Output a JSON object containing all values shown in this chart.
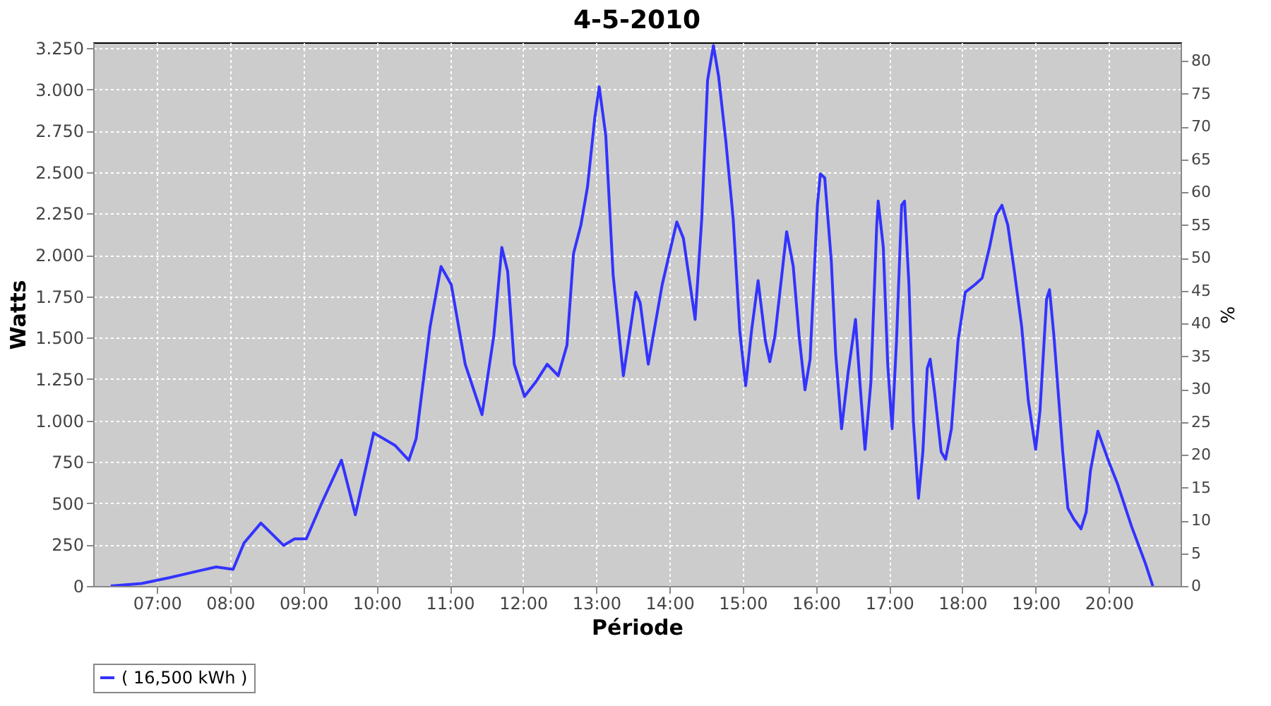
{
  "chart_data": {
    "type": "line",
    "title": "4-5-2010",
    "xlabel": "Période",
    "ylabel": "Watts",
    "y2label": "%",
    "xlim": [
      6.13,
      20.98
    ],
    "xticks": [
      {
        "value": 7,
        "label": "07:00"
      },
      {
        "value": 8,
        "label": "08:00"
      },
      {
        "value": 9,
        "label": "09:00"
      },
      {
        "value": 10,
        "label": "10:00"
      },
      {
        "value": 11,
        "label": "11:00"
      },
      {
        "value": 12,
        "label": "12:00"
      },
      {
        "value": 13,
        "label": "13:00"
      },
      {
        "value": 14,
        "label": "14:00"
      },
      {
        "value": 15,
        "label": "15:00"
      },
      {
        "value": 16,
        "label": "16:00"
      },
      {
        "value": 17,
        "label": "17:00"
      },
      {
        "value": 18,
        "label": "18:00"
      },
      {
        "value": 19,
        "label": "19:00"
      },
      {
        "value": 20,
        "label": "20:00"
      }
    ],
    "ylim": [
      0,
      3284
    ],
    "yticks": [
      0,
      250,
      500,
      750,
      {
        "value": 1000,
        "label": "1.000"
      },
      {
        "value": 1250,
        "label": "1.250"
      },
      {
        "value": 1500,
        "label": "1.500"
      },
      {
        "value": 1750,
        "label": "1.750"
      },
      {
        "value": 2000,
        "label": "2.000"
      },
      {
        "value": 2250,
        "label": "2.250"
      },
      {
        "value": 2500,
        "label": "2.500"
      },
      {
        "value": 2750,
        "label": "2.750"
      },
      {
        "value": 3000,
        "label": "3.000"
      },
      {
        "value": 3250,
        "label": "3.250"
      }
    ],
    "y2lim": [
      0,
      82.8
    ],
    "y2ticks": [
      0,
      5,
      10,
      15,
      20,
      25,
      30,
      35,
      40,
      45,
      50,
      55,
      60,
      65,
      70,
      75,
      80
    ],
    "grid": true,
    "legend": "bottom",
    "marker": "none",
    "line_style": "solid",
    "series": [
      {
        "name": "( 16,500 kWh )",
        "color": "#3333ff",
        "x": [
          6.37,
          6.79,
          7.17,
          7.56,
          7.81,
          8.04,
          8.19,
          8.42,
          8.73,
          8.88,
          9.04,
          9.25,
          9.52,
          9.71,
          9.96,
          10.25,
          10.44,
          10.54,
          10.73,
          10.88,
          11.02,
          11.21,
          11.44,
          11.6,
          11.71,
          11.79,
          11.88,
          12.02,
          12.17,
          12.33,
          12.48,
          12.6,
          12.69,
          12.79,
          12.88,
          12.98,
          13.04,
          13.13,
          13.23,
          13.37,
          13.54,
          13.6,
          13.71,
          13.9,
          14.1,
          14.19,
          14.35,
          14.44,
          14.52,
          14.6,
          14.67,
          14.77,
          14.87,
          14.96,
          15.04,
          15.12,
          15.21,
          15.31,
          15.37,
          15.44,
          15.6,
          15.69,
          15.77,
          15.85,
          15.92,
          16.02,
          16.06,
          16.12,
          16.21,
          16.27,
          16.35,
          16.44,
          16.54,
          16.6,
          16.67,
          16.75,
          16.83,
          16.85,
          16.92,
          16.98,
          17.04,
          17.1,
          17.17,
          17.21,
          17.27,
          17.33,
          17.4,
          17.46,
          17.52,
          17.56,
          17.62,
          17.71,
          17.77,
          17.85,
          17.94,
          18.04,
          18.17,
          18.27,
          18.37,
          18.46,
          18.54,
          18.62,
          18.71,
          18.81,
          18.9,
          19.0,
          19.06,
          19.15,
          19.19,
          19.25,
          19.37,
          19.44,
          19.52,
          19.62,
          19.69,
          19.75,
          19.85,
          20.0,
          20.12,
          20.31,
          20.5,
          20.6
        ],
        "values": [
          0,
          15,
          50,
          90,
          115,
          100,
          260,
          380,
          245,
          285,
          285,
          500,
          760,
          430,
          925,
          850,
          760,
          890,
          1565,
          1930,
          1820,
          1340,
          1035,
          1510,
          2045,
          1900,
          1340,
          1145,
          1230,
          1340,
          1270,
          1455,
          2010,
          2180,
          2410,
          2830,
          3015,
          2720,
          1880,
          1270,
          1775,
          1710,
          1340,
          1820,
          2200,
          2100,
          1610,
          2215,
          3055,
          3265,
          3080,
          2685,
          2215,
          1540,
          1210,
          1540,
          1845,
          1480,
          1355,
          1510,
          2140,
          1930,
          1510,
          1185,
          1370,
          2300,
          2490,
          2465,
          1960,
          1400,
          950,
          1290,
          1610,
          1230,
          825,
          1230,
          2180,
          2325,
          2045,
          1340,
          950,
          1480,
          2300,
          2325,
          1820,
          1000,
          530,
          810,
          1315,
          1370,
          1170,
          810,
          765,
          950,
          1480,
          1775,
          1820,
          1860,
          2045,
          2240,
          2300,
          2180,
          1900,
          1565,
          1120,
          825,
          1060,
          1735,
          1790,
          1510,
          810,
          470,
          405,
          345,
          445,
          700,
          935,
          750,
          615,
          360,
          135,
          0
        ]
      }
    ]
  }
}
